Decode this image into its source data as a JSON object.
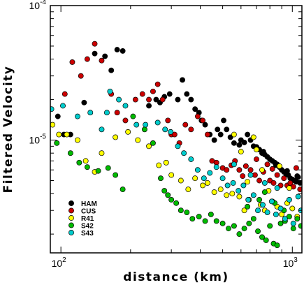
{
  "chart_data": {
    "type": "scatter",
    "title": "",
    "xlabel": "distance (km)",
    "ylabel": "Filtered Velocity",
    "x_scale": "log",
    "y_scale": "log",
    "xlim": [
      90,
      1100
    ],
    "ylim": [
      1.45e-06,
      0.0001
    ],
    "x_tick_labels": [
      {
        "value": 100,
        "base": "10",
        "exp": "2"
      },
      {
        "value": 1000,
        "base": "10",
        "exp": "3"
      }
    ],
    "y_tick_labels": [
      {
        "value": 1e-05,
        "base": "10",
        "exp": "-5"
      },
      {
        "value": 0.0001,
        "base": "10",
        "exp": "-4"
      }
    ],
    "grid": false,
    "legend_position": "lower-left",
    "series": [
      {
        "name": "HAM",
        "color": "#000000",
        "points": [
          [
            97,
            1.5e-05
          ],
          [
            103,
            1.1e-05
          ],
          [
            110,
            1.1e-05
          ],
          [
            126,
            1.9e-05
          ],
          [
            140,
            4.4e-05
          ],
          [
            155,
            4.2e-05
          ],
          [
            165,
            3.3e-05
          ],
          [
            175,
            4.7e-05
          ],
          [
            185,
            4.6e-05
          ],
          [
            240,
            1.8e-05
          ],
          [
            258,
            2e-05
          ],
          [
            268,
            1.9e-05
          ],
          [
            280,
            2.1e-05
          ],
          [
            295,
            2.2e-05
          ],
          [
            320,
            2e-05
          ],
          [
            335,
            2.8e-05
          ],
          [
            350,
            2.2e-05
          ],
          [
            365,
            2e-05
          ],
          [
            380,
            1.7e-05
          ],
          [
            395,
            1.6e-05
          ],
          [
            405,
            1.4e-05
          ],
          [
            420,
            1.3e-05
          ],
          [
            440,
            1.1e-05
          ],
          [
            460,
            1e-05
          ],
          [
            475,
            1.2e-05
          ],
          [
            490,
            1.1e-05
          ],
          [
            505,
            1.4e-05
          ],
          [
            520,
            1.2e-05
          ],
          [
            540,
            1.05e-05
          ],
          [
            560,
            9.5e-06
          ],
          [
            590,
            9.2e-06
          ],
          [
            620,
            9.6e-06
          ],
          [
            640,
            1.1e-05
          ],
          [
            660,
            1e-05
          ],
          [
            680,
            9e-06
          ],
          [
            700,
            8.9e-06
          ],
          [
            720,
            8.5e-06
          ],
          [
            740,
            8e-06
          ],
          [
            760,
            7.8e-06
          ],
          [
            780,
            7.5e-06
          ],
          [
            800,
            7.2e-06
          ],
          [
            820,
            7e-06
          ],
          [
            840,
            6.8e-06
          ],
          [
            860,
            6.6e-06
          ],
          [
            880,
            6.3e-06
          ],
          [
            900,
            6e-06
          ],
          [
            920,
            5.8e-06
          ],
          [
            940,
            5.6e-06
          ],
          [
            960,
            5.5e-06
          ],
          [
            980,
            5.2e-06
          ],
          [
            1000,
            5.1e-06
          ],
          [
            1020,
            5e-06
          ],
          [
            1040,
            4.9e-06
          ],
          [
            1060,
            5.3e-06
          ],
          [
            1080,
            4.8e-06
          ],
          [
            600,
            1e-05
          ],
          [
            750,
            8.2e-06
          ],
          [
            850,
            6.5e-06
          ],
          [
            950,
            5.9e-06
          ],
          [
            1050,
            5.4e-06
          ]
        ]
      },
      {
        "name": "CUS",
        "color": "#cc0000",
        "points": [
          [
            104,
            2.2e-05
          ],
          [
            112,
            3.8e-05
          ],
          [
            122,
            3e-05
          ],
          [
            130,
            4e-05
          ],
          [
            140,
            5.2e-05
          ],
          [
            150,
            3.9e-05
          ],
          [
            165,
            2.2e-05
          ],
          [
            175,
            1.6e-05
          ],
          [
            190,
            1.4e-05
          ],
          [
            210,
            2e-05
          ],
          [
            225,
            2.2e-05
          ],
          [
            240,
            2e-05
          ],
          [
            250,
            2.3e-05
          ],
          [
            262,
            2.6e-05
          ],
          [
            275,
            2e-05
          ],
          [
            290,
            1.4e-05
          ],
          [
            300,
            1.1e-05
          ],
          [
            310,
            1.1e-05
          ],
          [
            325,
            9.5e-06
          ],
          [
            345,
            1.3e-05
          ],
          [
            365,
            1.2e-05
          ],
          [
            390,
            1.5e-05
          ],
          [
            410,
            1.4e-05
          ],
          [
            430,
            1.1e-05
          ],
          [
            450,
            7e-06
          ],
          [
            470,
            6.8e-06
          ],
          [
            500,
            6.2e-06
          ],
          [
            520,
            6e-06
          ],
          [
            545,
            6.5e-06
          ],
          [
            565,
            7e-06
          ],
          [
            590,
            6e-06
          ],
          [
            610,
            5.4e-06
          ],
          [
            630,
            6.4e-06
          ],
          [
            660,
            6e-06
          ],
          [
            690,
            5.5e-06
          ],
          [
            720,
            5e-06
          ],
          [
            750,
            5.8e-06
          ],
          [
            780,
            6.6e-06
          ],
          [
            800,
            5e-06
          ],
          [
            830,
            4.8e-06
          ],
          [
            860,
            5.5e-06
          ],
          [
            890,
            4.6e-06
          ],
          [
            920,
            5.2e-06
          ],
          [
            950,
            4.6e-06
          ],
          [
            980,
            4.8e-06
          ],
          [
            1010,
            4.5e-06
          ],
          [
            1040,
            6.2e-06
          ],
          [
            1080,
            4.3e-06
          ],
          [
            700,
            7.2e-06
          ],
          [
            820,
            6.1e-06
          ]
        ]
      },
      {
        "name": "R41",
        "color": "#ffff00",
        "points": [
          [
            92,
            1.3e-05
          ],
          [
            98,
            1.1e-05
          ],
          [
            106,
            1.1e-05
          ],
          [
            118,
            1e-05
          ],
          [
            128,
            7e-06
          ],
          [
            140,
            5.8e-06
          ],
          [
            150,
            8e-06
          ],
          [
            172,
            1.05e-05
          ],
          [
            195,
            1.15e-05
          ],
          [
            215,
            1e-05
          ],
          [
            240,
            9e-06
          ],
          [
            265,
            6.5e-06
          ],
          [
            285,
            6.8e-06
          ],
          [
            300,
            5.5e-06
          ],
          [
            330,
            5e-06
          ],
          [
            355,
            4.3e-06
          ],
          [
            380,
            5.2e-06
          ],
          [
            410,
            4.6e-06
          ],
          [
            430,
            4.8e-06
          ],
          [
            460,
            4.1e-06
          ],
          [
            490,
            4.3e-06
          ],
          [
            520,
            3.9e-06
          ],
          [
            550,
            4e-06
          ],
          [
            590,
            3.8e-06
          ],
          [
            620,
            3e-06
          ],
          [
            650,
            3.6e-06
          ],
          [
            680,
            1.05e-05
          ],
          [
            700,
            8.5e-06
          ],
          [
            730,
            3.3e-06
          ],
          [
            760,
            3e-06
          ],
          [
            790,
            4.2e-06
          ],
          [
            820,
            3.5e-06
          ],
          [
            860,
            3.2e-06
          ],
          [
            900,
            2.8e-06
          ],
          [
            950,
            3.4e-06
          ],
          [
            1000,
            3.1e-06
          ],
          [
            1050,
            2.7e-06
          ],
          [
            560,
            1.1e-05
          ],
          [
            600,
            8.2e-06
          ],
          [
            640,
            4.9e-06
          ],
          [
            740,
            6e-06
          ],
          [
            880,
            6.4e-06
          ],
          [
            970,
            4.4e-06
          ]
        ]
      },
      {
        "name": "S42",
        "color": "#00bb00",
        "points": [
          [
            96,
            9.5e-06
          ],
          [
            110,
            8e-06
          ],
          [
            120,
            6.8e-06
          ],
          [
            130,
            6.3e-06
          ],
          [
            145,
            5.9e-06
          ],
          [
            160,
            6.2e-06
          ],
          [
            172,
            5.5e-06
          ],
          [
            185,
            4.3e-06
          ],
          [
            205,
            1.5e-05
          ],
          [
            230,
            1.2e-05
          ],
          [
            250,
            9.5e-06
          ],
          [
            270,
            5.2e-06
          ],
          [
            280,
            4.2e-06
          ],
          [
            290,
            3.9e-06
          ],
          [
            300,
            3.6e-06
          ],
          [
            315,
            3.4e-06
          ],
          [
            330,
            3e-06
          ],
          [
            350,
            2.9e-06
          ],
          [
            370,
            2.6e-06
          ],
          [
            395,
            2.7e-06
          ],
          [
            420,
            2.5e-06
          ],
          [
            445,
            2.8e-06
          ],
          [
            470,
            2.5e-06
          ],
          [
            500,
            2.4e-06
          ],
          [
            530,
            2.2e-06
          ],
          [
            560,
            2.3e-06
          ],
          [
            590,
            2e-06
          ],
          [
            620,
            2.2e-06
          ],
          [
            650,
            2.4e-06
          ],
          [
            680,
            2.6e-06
          ],
          [
            710,
            2.1e-06
          ],
          [
            740,
            1.9e-06
          ],
          [
            770,
            1.8e-06
          ],
          [
            800,
            2.3e-06
          ],
          [
            830,
            1.7e-06
          ],
          [
            860,
            1.65e-06
          ],
          [
            890,
            2.4e-06
          ],
          [
            930,
            2.5e-06
          ],
          [
            970,
            2.7e-06
          ],
          [
            1010,
            2.2e-06
          ],
          [
            1050,
            2.6e-06
          ],
          [
            1090,
            2.3e-06
          ],
          [
            640,
            3.2e-06
          ],
          [
            720,
            3.6e-06
          ],
          [
            760,
            4.1e-06
          ],
          [
            840,
            3.4e-06
          ],
          [
            920,
            3e-06
          ]
        ]
      },
      {
        "name": "S43",
        "color": "#00cccc",
        "points": [
          [
            91,
            1.7e-05
          ],
          [
            102,
            1.8e-05
          ],
          [
            118,
            1.5e-05
          ],
          [
            134,
            1.6e-05
          ],
          [
            150,
            1.2e-05
          ],
          [
            158,
            1.6e-05
          ],
          [
            163,
            2.3e-05
          ],
          [
            178,
            2e-05
          ],
          [
            190,
            1.8e-05
          ],
          [
            212,
            1.3e-05
          ],
          [
            232,
            1.3e-05
          ],
          [
            262,
            1.35e-05
          ],
          [
            282,
            1.2e-05
          ],
          [
            298,
            1.15e-05
          ],
          [
            320,
            9e-06
          ],
          [
            340,
            8e-06
          ],
          [
            365,
            7.2e-06
          ],
          [
            390,
            6e-06
          ],
          [
            415,
            5.2e-06
          ],
          [
            440,
            5.7e-06
          ],
          [
            470,
            6.3e-06
          ],
          [
            500,
            5.2e-06
          ],
          [
            525,
            4.6e-06
          ],
          [
            555,
            4.8e-06
          ],
          [
            585,
            4.2e-06
          ],
          [
            615,
            4.6e-06
          ],
          [
            645,
            3.6e-06
          ],
          [
            680,
            3.9e-06
          ],
          [
            710,
            3e-06
          ],
          [
            745,
            3.3e-06
          ],
          [
            780,
            2.9e-06
          ],
          [
            815,
            3.5e-06
          ],
          [
            850,
            2.8e-06
          ],
          [
            890,
            3.1e-06
          ],
          [
            930,
            2.6e-06
          ],
          [
            970,
            3.6e-06
          ],
          [
            1010,
            2.4e-06
          ],
          [
            1060,
            3.8e-06
          ],
          [
            1090,
            3e-06
          ],
          [
            560,
            6.6e-06
          ],
          [
            660,
            5.5e-06
          ],
          [
            760,
            4.8e-06
          ],
          [
            860,
            4.4e-06
          ]
        ]
      }
    ]
  }
}
